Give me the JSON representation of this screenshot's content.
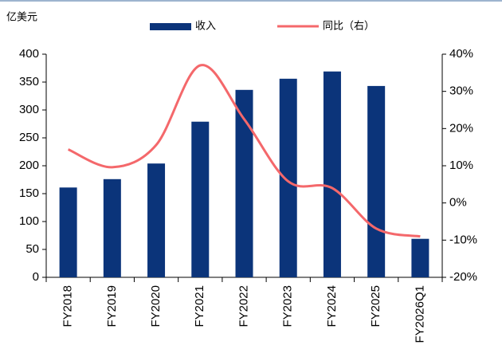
{
  "chart_data": {
    "type": "bar",
    "ylabel": "亿美元",
    "categories": [
      "FY2018",
      "FY2019",
      "FY2020",
      "FY2021",
      "FY2022",
      "FY2023",
      "FY2024",
      "FY2025",
      "FY2026Q1"
    ],
    "series": [
      {
        "name": "收入",
        "type": "bar",
        "color": "#0b347a",
        "values": [
          161,
          176,
          204,
          279,
          336,
          356,
          369,
          343,
          69
        ]
      },
      {
        "name": "同比（右）",
        "type": "line",
        "axis": "y2",
        "color": "#f4686b",
        "values": [
          14.4,
          9.6,
          15.6,
          37,
          22.5,
          5.8,
          4,
          -6.9,
          -9
        ]
      }
    ],
    "ylim": [
      0,
      400
    ],
    "yticks": [
      0,
      50,
      100,
      150,
      200,
      250,
      300,
      350,
      400
    ],
    "y2lim": [
      -20,
      40
    ],
    "y2ticks": [
      {
        "value": -20,
        "label": "-20%"
      },
      {
        "value": -10,
        "label": "-10%"
      },
      {
        "value": 0,
        "label": "0%"
      },
      {
        "value": 10,
        "label": "10%"
      },
      {
        "value": 20,
        "label": "20%"
      },
      {
        "value": 30,
        "label": "30%"
      },
      {
        "value": 40,
        "label": "40%"
      }
    ]
  }
}
